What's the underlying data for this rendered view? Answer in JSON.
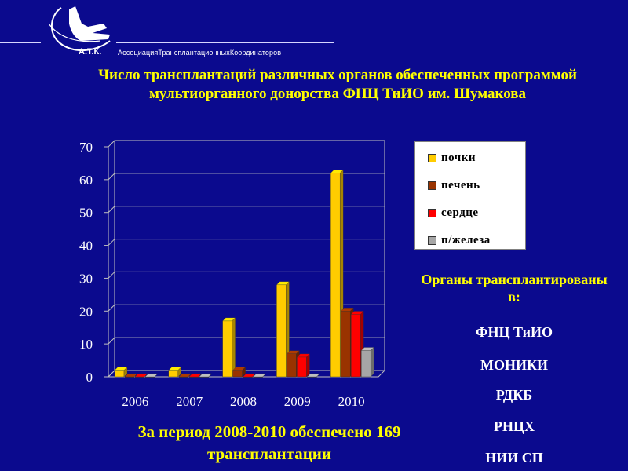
{
  "logo": {
    "abbr": "А.Т.К.",
    "name": "АссоциацияТрансплантационныхКоординаторов"
  },
  "title": "Число трансплантаций различных органов обеспеченных программой мультиорганного донорства ФНЦ ТиИО им. Шумакова",
  "chart_data": {
    "type": "bar",
    "categories": [
      "2006",
      "2007",
      "2008",
      "2009",
      "2010"
    ],
    "series": [
      {
        "name": "почки",
        "color": "#ffcc00",
        "values": [
          2,
          2,
          17,
          28,
          62
        ]
      },
      {
        "name": "печень",
        "color": "#993300",
        "values": [
          0,
          0,
          2,
          7,
          20
        ]
      },
      {
        "name": "сердце",
        "color": "#ff0000",
        "values": [
          0,
          0,
          0,
          6,
          19
        ]
      },
      {
        "name": "п/железа",
        "color": "#a6a6a6",
        "values": [
          0,
          0,
          0,
          0,
          8
        ]
      }
    ],
    "ylim": [
      0,
      70
    ],
    "yticks": [
      "0",
      "10",
      "20",
      "30",
      "40",
      "50",
      "60",
      "70"
    ],
    "legend_position": "right"
  },
  "footer": "За период 2008-2010 обеспечено 169 трансплантации",
  "organs_heading": "Органы трансплантированы в:",
  "organizations": [
    "ФНЦ ТиИО",
    "МОНИКИ",
    "РДКБ",
    "РНЦХ",
    "НИИ СП"
  ]
}
